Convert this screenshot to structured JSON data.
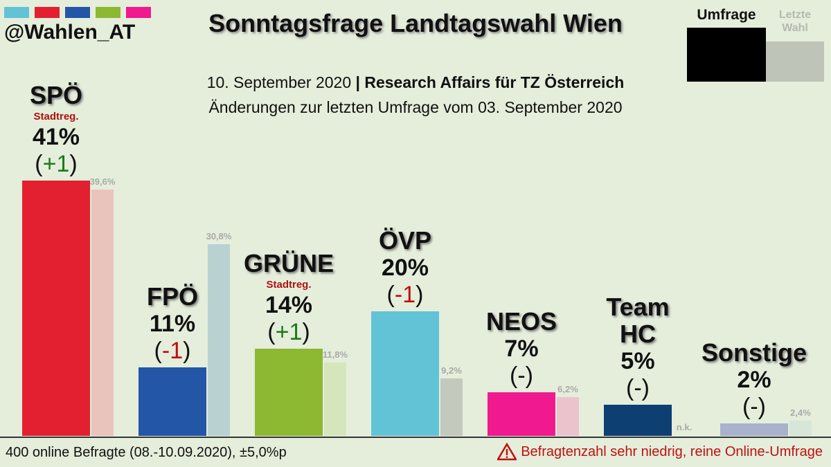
{
  "chart_data": {
    "type": "bar",
    "brand": "@Wahlen_AT",
    "title": "Sonntagsfrage Landtagswahl Wien",
    "subtitle_date": "10. September 2020",
    "subtitle_separator": "|",
    "subtitle_source": "Research Affairs für TZ Österreich",
    "subtitle_changes": "Änderungen zur letzten Umfrage vom 03. September 2020",
    "categories": [
      "SPÖ",
      "FPÖ",
      "GRÜNE",
      "ÖVP",
      "NEOS",
      "Team\nHC",
      "Sonstige"
    ],
    "notes": [
      "Stadtreg.",
      null,
      "Stadtreg.",
      null,
      null,
      null,
      null
    ],
    "series": [
      {
        "name": "Umfrage",
        "color": "#000000",
        "colors": [
          "#e3202f",
          "#2356a6",
          "#8cb832",
          "#63c3d6",
          "#f0198f",
          "#0d3f72",
          "#a9b2cc"
        ],
        "values": [
          41,
          11,
          14,
          20,
          7,
          5,
          2
        ],
        "value_labels": [
          "41%",
          "11%",
          "14%",
          "20%",
          "7%",
          "5%",
          "2%"
        ]
      },
      {
        "name": "Letzte Wahl",
        "color": "#bfc4b8",
        "colors": [
          "#e8c4bd",
          "#b9d1d1",
          "#d5e6bc",
          "#c3c9bd",
          "#ebc3cd",
          null,
          "#d7e6d7"
        ],
        "values": [
          39.6,
          30.8,
          11.8,
          9.2,
          6.2,
          null,
          2.4
        ],
        "value_labels": [
          "39,6%",
          "30,8%",
          "11,8%",
          "9,2%",
          "6,2%",
          "n.k.",
          "2,4%"
        ]
      }
    ],
    "changes": [
      "+1",
      "-1",
      "+1",
      "-1",
      "-",
      "-",
      "-"
    ],
    "change_brackets": [
      "(",
      ")"
    ],
    "ylim": [
      0,
      45
    ],
    "footer_left": "400 online Befragte (08.-10.09.2020), ±5,0%p",
    "footer_right": "Befragtenzahl sehr niedrig, reine Online-Umfrage"
  }
}
